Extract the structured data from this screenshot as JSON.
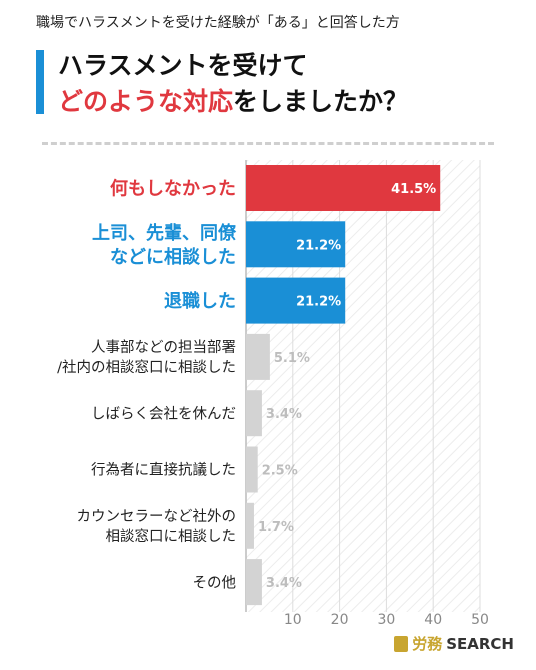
{
  "header": {
    "subtitle": "職場でハラスメントを受けた経験が「ある」と回答した方",
    "title_line1": "ハラスメントを受けて",
    "title_line2_highlight": "どのような対応",
    "title_line2_rest": "をしましたか？"
  },
  "brand": {
    "name_jp": "労務",
    "name_en": "SEARCH"
  },
  "colors": {
    "red": "#e0383f",
    "blue": "#1a8fd6",
    "gray": "#d3d3d3",
    "gray_text": "#bdbdbd"
  },
  "chart_data": {
    "type": "bar",
    "orientation": "horizontal",
    "categories": [
      [
        "何もしなかった"
      ],
      [
        "上司、先輩、同僚",
        "などに相談した"
      ],
      [
        "退職した"
      ],
      [
        "人事部などの担当部署",
        "/社内の相談窓口に相談した"
      ],
      [
        "しばらく会社を休んだ"
      ],
      [
        "行為者に直接抗議した"
      ],
      [
        "カウンセラーなど社外の",
        "相談窓口に相談した"
      ],
      [
        "その他"
      ]
    ],
    "values": [
      41.5,
      21.2,
      21.2,
      5.1,
      3.4,
      2.5,
      1.7,
      3.4
    ],
    "value_labels": [
      "41.5%",
      "21.2%",
      "21.2%",
      "5.1%",
      "3.4%",
      "2.5%",
      "1.7%",
      "3.4%"
    ],
    "bar_colors": [
      "red",
      "blue",
      "blue",
      "gray",
      "gray",
      "gray",
      "gray",
      "gray"
    ],
    "xlim": [
      0,
      50
    ],
    "xticks": [
      10,
      20,
      30,
      40,
      50
    ],
    "grid": "vertical lines"
  }
}
